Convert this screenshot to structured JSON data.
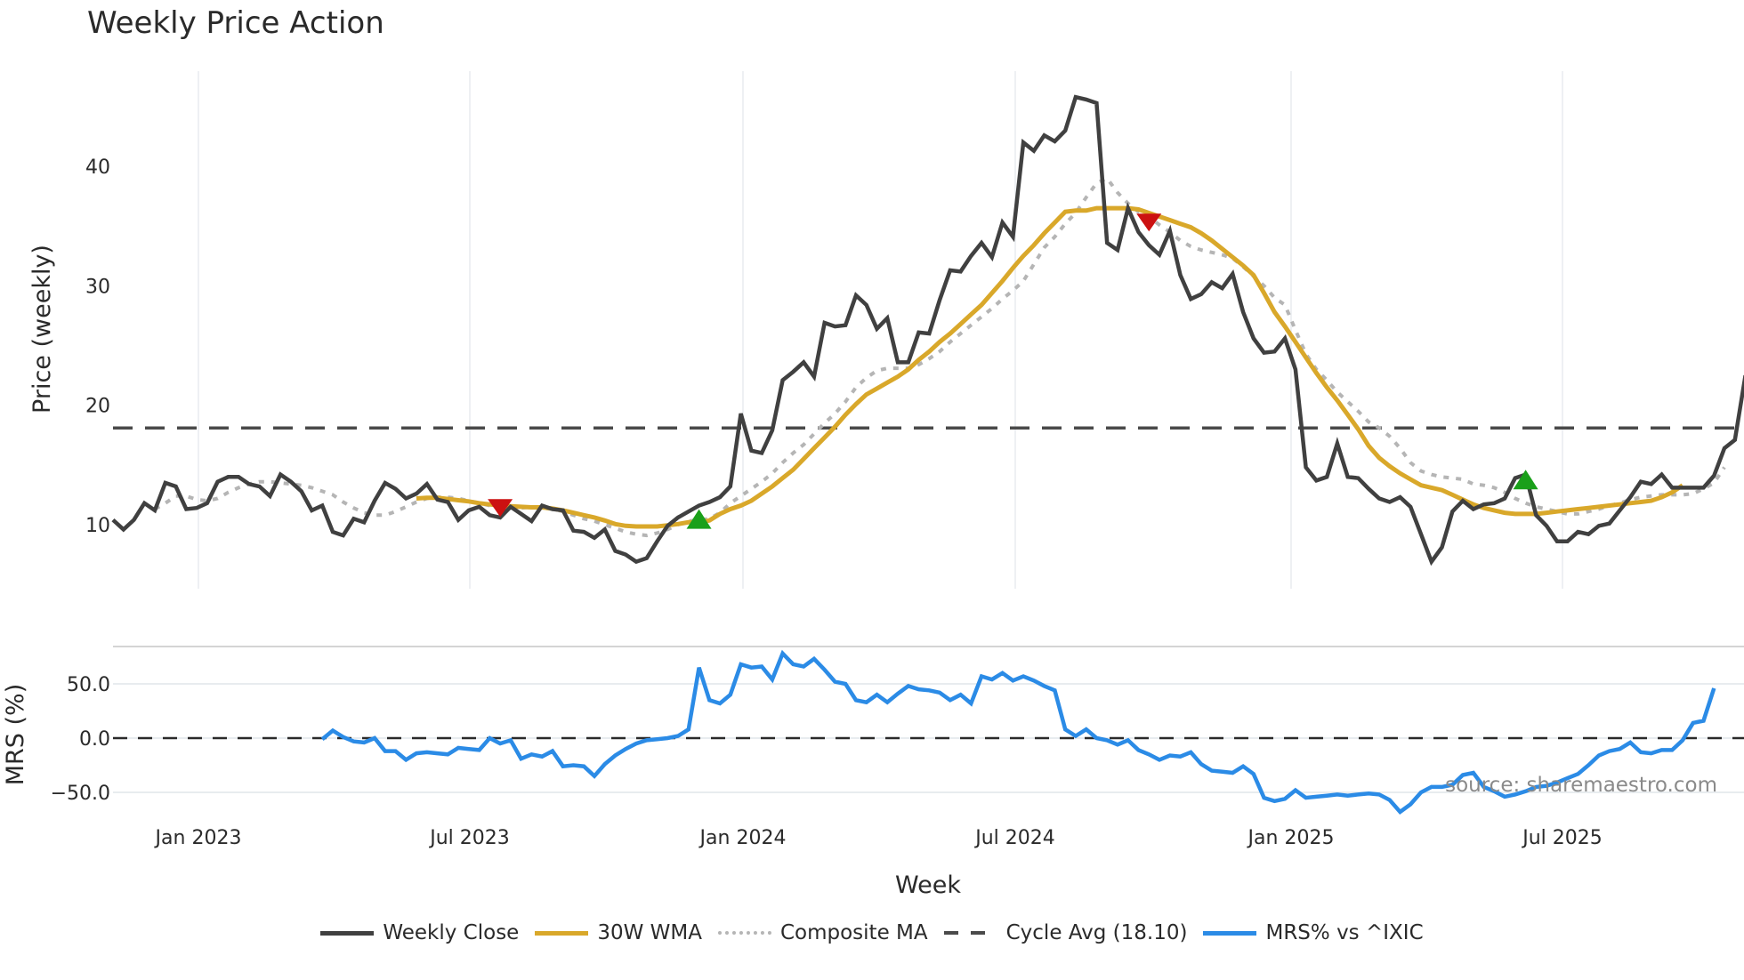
{
  "title": "Weekly Price Action",
  "source_note": "source: sharemaestro.com",
  "legend": [
    {
      "label": "Weekly Close",
      "color": "#404040",
      "style": "solid"
    },
    {
      "label": "30W WMA",
      "color": "#d9a82a",
      "style": "solid"
    },
    {
      "label": "Composite MA",
      "color": "#b5b5b5",
      "style": "dotted"
    },
    {
      "label": "Cycle Avg (18.10)",
      "color": "#4a4a4a",
      "style": "dashed"
    },
    {
      "label": "MRS% vs ^IXIC",
      "color": "#2b8be6",
      "style": "solid"
    }
  ],
  "colors": {
    "close": "#404040",
    "wma": "#d9a82a",
    "composite": "#b5b5b5",
    "cycle": "#4a4a4a",
    "mrs": "#2b8be6",
    "sell_marker": "#cc1111",
    "buy_marker": "#1aa01a",
    "grid": "#e8ecef"
  },
  "chart_data": [
    {
      "type": "line",
      "title": "Weekly Price Action",
      "xlabel": "Week",
      "ylabel": "Price (weekly)",
      "x_ticks": [
        "Jan 2023",
        "Jul 2023",
        "Jan 2024",
        "Jul 2024",
        "Jan 2025",
        "Jul 2025"
      ],
      "y_ticks": [
        10,
        20,
        30,
        40
      ],
      "ylim": [
        4.5,
        48
      ],
      "grid": true,
      "start_week": "2022-11-07",
      "cycle_avg": 18.1,
      "series": [
        {
          "name": "Weekly Close",
          "start_index": 0,
          "values": [
            10.4,
            9.6,
            10.4,
            11.8,
            11.2,
            13.5,
            13.2,
            11.3,
            11.4,
            11.8,
            13.6,
            14.0,
            14.0,
            13.4,
            13.2,
            12.4,
            14.2,
            13.6,
            12.8,
            11.2,
            11.6,
            9.4,
            9.1,
            10.5,
            10.2,
            12.0,
            13.5,
            13.0,
            12.2,
            12.6,
            13.4,
            12.1,
            11.9,
            10.4,
            11.2,
            11.5,
            10.8,
            10.6,
            11.5,
            10.9,
            10.3,
            11.6,
            11.3,
            11.2,
            9.5,
            9.4,
            8.9,
            9.6,
            7.8,
            7.5,
            6.9,
            7.2,
            8.6,
            9.9,
            10.6,
            11.1,
            11.6,
            11.9,
            12.3,
            13.2,
            19.3,
            16.2,
            16.0,
            17.9,
            22.1,
            22.8,
            23.6,
            22.4,
            26.9,
            26.6,
            26.7,
            29.2,
            28.4,
            26.4,
            27.3,
            23.6,
            23.6,
            26.1,
            26.0,
            28.8,
            31.3,
            31.2,
            32.5,
            33.6,
            32.4,
            35.3,
            34.1,
            42.0,
            41.3,
            42.6,
            42.1,
            43.0,
            45.8,
            45.6,
            45.3,
            33.6,
            33.0,
            36.5,
            34.5,
            33.4,
            32.6,
            34.6,
            30.9,
            28.9,
            29.3,
            30.3,
            29.8,
            31.0,
            27.8,
            25.6,
            24.4,
            24.5,
            25.6,
            23.0,
            14.8,
            13.7,
            14.0,
            16.8,
            14.0,
            13.9,
            13.0,
            12.2,
            11.9,
            12.3,
            11.5,
            9.2,
            6.9,
            8.1,
            11.1,
            12.0,
            11.3,
            11.7,
            11.8,
            12.2,
            13.9,
            14.2,
            10.8,
            9.9,
            8.6,
            8.6,
            9.4,
            9.2,
            9.9,
            10.1,
            11.2,
            12.3,
            13.6,
            13.4,
            14.2,
            13.1,
            13.1,
            13.1,
            13.1,
            14.1,
            16.4,
            17.1,
            22.5
          ]
        },
        {
          "name": "30W WMA",
          "start_index": 29,
          "values": [
            12.2,
            12.25,
            12.25,
            12.15,
            12.05,
            11.95,
            11.8,
            11.7,
            11.6,
            11.55,
            11.5,
            11.45,
            11.45,
            11.35,
            11.2,
            11.0,
            10.8,
            10.6,
            10.35,
            10.05,
            9.9,
            9.85,
            9.85,
            9.85,
            9.95,
            10.05,
            10.2,
            10.2,
            10.35,
            10.9,
            11.3,
            11.6,
            12.0,
            12.6,
            13.2,
            13.9,
            14.6,
            15.5,
            16.4,
            17.3,
            18.2,
            19.2,
            20.1,
            20.9,
            21.4,
            21.9,
            22.4,
            23.0,
            23.8,
            24.5,
            25.3,
            26.0,
            26.8,
            27.6,
            28.4,
            29.4,
            30.4,
            31.5,
            32.5,
            33.4,
            34.4,
            35.3,
            36.2,
            36.3,
            36.3,
            36.5,
            36.5,
            36.5,
            36.5,
            36.4,
            36.1,
            35.8,
            35.5,
            35.2,
            34.9,
            34.4,
            33.8,
            33.1,
            32.4,
            31.7,
            30.9,
            29.4,
            27.8,
            26.6,
            25.3,
            24.0,
            22.7,
            21.5,
            20.4,
            19.2,
            18.0,
            16.6,
            15.6,
            14.9,
            14.3,
            13.8,
            13.3,
            13.1,
            12.9,
            12.5,
            12.1,
            11.7,
            11.4,
            11.2,
            11.0,
            10.9,
            10.9,
            10.9,
            11.0,
            11.1,
            11.2,
            11.3,
            11.4,
            11.5,
            11.6,
            11.7,
            11.8,
            11.9,
            12.0,
            12.3,
            12.7,
            13.3
          ]
        },
        {
          "name": "Composite MA",
          "start_index": 4,
          "values": [
            11.3,
            11.8,
            12.4,
            12.4,
            12.1,
            12.0,
            12.2,
            12.7,
            13.1,
            13.4,
            13.6,
            13.6,
            13.5,
            13.4,
            13.3,
            13.1,
            12.8,
            12.5,
            11.9,
            11.4,
            11.0,
            10.8,
            10.8,
            11.1,
            11.5,
            11.9,
            12.2,
            12.3,
            12.3,
            12.2,
            12.0,
            11.8,
            11.6,
            11.5,
            11.4,
            11.4,
            11.5,
            11.4,
            11.3,
            11.1,
            10.8,
            10.5,
            10.3,
            10.0,
            9.7,
            9.4,
            9.2,
            9.1,
            9.3,
            9.6,
            10.0,
            10.3,
            10.4,
            10.5,
            11.0,
            11.8,
            12.4,
            13.0,
            13.6,
            14.3,
            15.2,
            16.0,
            16.7,
            17.6,
            18.5,
            19.3,
            20.3,
            21.5,
            22.3,
            22.9,
            23.1,
            23.1,
            23.1,
            23.4,
            23.9,
            24.5,
            25.3,
            26.0,
            26.7,
            27.4,
            28.1,
            28.9,
            29.6,
            30.4,
            31.8,
            33.2,
            34.1,
            35.2,
            36.1,
            37.4,
            38.6,
            39.0,
            37.8,
            36.9,
            36.2,
            35.8,
            35.1,
            34.5,
            33.8,
            33.3,
            33.0,
            32.8,
            32.6,
            32.3,
            31.6,
            30.8,
            30.0,
            29.0,
            28.4,
            26.3,
            24.3,
            23.0,
            22.1,
            21.1,
            20.3,
            19.5,
            18.6,
            18.1,
            17.4,
            16.4,
            15.2,
            14.5,
            14.2,
            14.0,
            13.9,
            13.8,
            13.4,
            13.3,
            13.1,
            12.7,
            12.2,
            11.8,
            11.5,
            11.3,
            11.1,
            10.9,
            10.9,
            11.1,
            11.3,
            11.6,
            11.8,
            12.1,
            12.3,
            12.4,
            12.5,
            12.5,
            12.5,
            12.6,
            13.0,
            13.5,
            14.8
          ]
        }
      ],
      "markers": [
        {
          "type": "sell",
          "index": 37,
          "value": 11.4
        },
        {
          "type": "buy",
          "index": 56,
          "value": 10.4
        },
        {
          "type": "sell",
          "index": 99,
          "value": 35.3
        },
        {
          "type": "buy",
          "index": 135,
          "value": 13.7
        }
      ]
    },
    {
      "type": "line",
      "title": "",
      "xlabel": "Week",
      "ylabel": "MRS (%)",
      "y_ticks": [
        50.0,
        0.0,
        -50.0
      ],
      "y_tick_labels": [
        "50.0",
        "0.0",
        "−50.0"
      ],
      "ylim": [
        -72,
        85
      ],
      "zero_line": 0,
      "series": [
        {
          "name": "MRS% vs ^IXIC",
          "start_index": 20,
          "values": [
            -1,
            7,
            1,
            -3,
            -4,
            0,
            -12,
            -12,
            -20,
            -14,
            -13,
            -14,
            -15,
            -9,
            -10,
            -11,
            0,
            -5,
            -2,
            -19,
            -15,
            -17,
            -12,
            -26,
            -25,
            -26,
            -35,
            -24,
            -16,
            -10,
            -5,
            -2,
            -1,
            0,
            2,
            8,
            65,
            35,
            32,
            40,
            68,
            65,
            66,
            54,
            78,
            68,
            66,
            73,
            63,
            52,
            50,
            35,
            33,
            40,
            33,
            41,
            48,
            45,
            44,
            42,
            35,
            40,
            32,
            57,
            54,
            60,
            53,
            57,
            53,
            48,
            44,
            8,
            2,
            8,
            0,
            -2,
            -6,
            -2,
            -11,
            -15,
            -20,
            -16,
            -17,
            -13,
            -24,
            -30,
            -31,
            -32,
            -26,
            -33,
            -55,
            -58,
            -56,
            -48,
            -55,
            -54,
            -53,
            -52,
            -53,
            -52,
            -51,
            -52,
            -57,
            -68,
            -61,
            -50,
            -45,
            -45,
            -43,
            -34,
            -32,
            -45,
            -49,
            -54,
            -52,
            -49,
            -45,
            -44,
            -41,
            -37,
            -33,
            -25,
            -16,
            -12,
            -10,
            -4,
            -13,
            -14,
            -11,
            -11,
            -2,
            14,
            16,
            46
          ]
        }
      ]
    }
  ]
}
